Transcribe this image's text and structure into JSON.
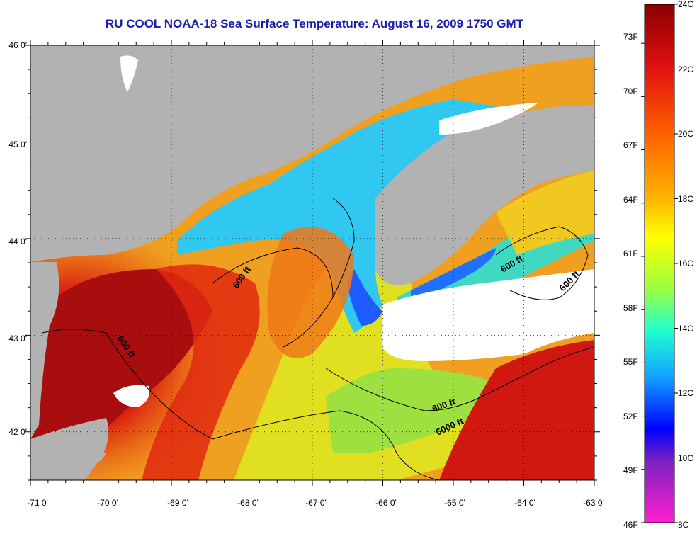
{
  "title": "RU COOL  NOAA-18  Sea Surface Temperature:  August 16, 2009 1750 GMT",
  "map": {
    "lat_labels": [
      "46 0'",
      "45 0'",
      "44 0'",
      "43 0'",
      "42 0'"
    ],
    "lon_labels": [
      "-71 0'",
      "-70 0'",
      "-69 0'",
      "-68 0'",
      "-67 0'",
      "-66 0'",
      "-65 0'",
      "-64 0'",
      "-63 0'"
    ],
    "lat_range": [
      41.5,
      46
    ],
    "lon_range": [
      -71,
      -63
    ],
    "contour_labels": [
      "600 ft",
      "600 ft",
      "600 ft",
      "600 ft",
      "600 ft",
      "6000 ft"
    ],
    "colors": {
      "land": "#b2b2b2",
      "cloud": "#ffffff",
      "warm": "#c41010",
      "cold": "#1e5cff"
    }
  },
  "colorbar": {
    "celsius_labels": [
      "24C",
      "22C",
      "20C",
      "18C",
      "16C",
      "14C",
      "12C",
      "10C",
      "8C"
    ],
    "fahrenheit_labels": [
      "73F",
      "70F",
      "67F",
      "64F",
      "61F",
      "58F",
      "55F",
      "52F",
      "49F",
      "46F"
    ],
    "range_c": [
      8,
      24
    ],
    "range_f": [
      46,
      75.2
    ]
  }
}
